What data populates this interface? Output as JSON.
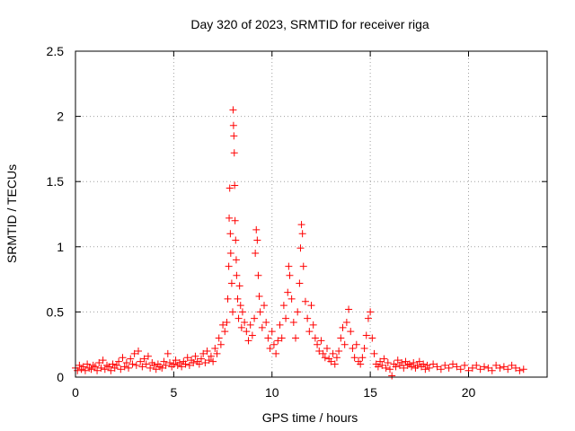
{
  "chart_data": {
    "type": "scatter",
    "title": "Day 320 of 2023, SRMTID for receiver riga",
    "xlabel": "GPS time / hours",
    "ylabel": "SRMTID / TECUs",
    "xlim": [
      0,
      24
    ],
    "ylim": [
      0,
      2.5
    ],
    "x_ticks": [
      0,
      5,
      10,
      15,
      20
    ],
    "x_tick_labels": [
      "0",
      "5",
      "10",
      "15",
      "20"
    ],
    "y_ticks": [
      0,
      0.5,
      1,
      1.5,
      2,
      2.5
    ],
    "y_tick_labels": [
      "0",
      "0.5",
      "1",
      "1.5",
      "2",
      "2.5"
    ],
    "grid": true,
    "marker": "+",
    "series": [
      {
        "name": "SRMTID",
        "color": "#ff0000",
        "points": [
          [
            0.0,
            0.07
          ],
          [
            0.1,
            0.05
          ],
          [
            0.2,
            0.09
          ],
          [
            0.3,
            0.06
          ],
          [
            0.4,
            0.08
          ],
          [
            0.5,
            0.05
          ],
          [
            0.6,
            0.1
          ],
          [
            0.7,
            0.07
          ],
          [
            0.8,
            0.06
          ],
          [
            0.9,
            0.09
          ],
          [
            1.0,
            0.08
          ],
          [
            1.1,
            0.05
          ],
          [
            1.2,
            0.11
          ],
          [
            1.3,
            0.07
          ],
          [
            1.4,
            0.13
          ],
          [
            1.5,
            0.06
          ],
          [
            1.6,
            0.09
          ],
          [
            1.7,
            0.08
          ],
          [
            1.8,
            0.05
          ],
          [
            1.9,
            0.1
          ],
          [
            2.0,
            0.07
          ],
          [
            2.1,
            0.09
          ],
          [
            2.2,
            0.12
          ],
          [
            2.3,
            0.06
          ],
          [
            2.4,
            0.15
          ],
          [
            2.5,
            0.08
          ],
          [
            2.6,
            0.11
          ],
          [
            2.7,
            0.07
          ],
          [
            2.8,
            0.14
          ],
          [
            2.9,
            0.1
          ],
          [
            3.0,
            0.18
          ],
          [
            3.1,
            0.09
          ],
          [
            3.2,
            0.2
          ],
          [
            3.3,
            0.12
          ],
          [
            3.4,
            0.08
          ],
          [
            3.5,
            0.14
          ],
          [
            3.6,
            0.1
          ],
          [
            3.7,
            0.16
          ],
          [
            3.8,
            0.07
          ],
          [
            3.9,
            0.11
          ],
          [
            4.0,
            0.09
          ],
          [
            4.1,
            0.06
          ],
          [
            4.2,
            0.1
          ],
          [
            4.3,
            0.08
          ],
          [
            4.4,
            0.07
          ],
          [
            4.5,
            0.12
          ],
          [
            4.6,
            0.09
          ],
          [
            4.7,
            0.18
          ],
          [
            4.8,
            0.11
          ],
          [
            4.9,
            0.08
          ],
          [
            5.0,
            0.1
          ],
          [
            5.1,
            0.13
          ],
          [
            5.2,
            0.09
          ],
          [
            5.3,
            0.11
          ],
          [
            5.4,
            0.08
          ],
          [
            5.5,
            0.12
          ],
          [
            5.6,
            0.1
          ],
          [
            5.7,
            0.15
          ],
          [
            5.8,
            0.09
          ],
          [
            5.9,
            0.13
          ],
          [
            6.0,
            0.11
          ],
          [
            6.1,
            0.16
          ],
          [
            6.2,
            0.12
          ],
          [
            6.3,
            0.1
          ],
          [
            6.4,
            0.14
          ],
          [
            6.5,
            0.18
          ],
          [
            6.6,
            0.11
          ],
          [
            6.7,
            0.2
          ],
          [
            6.8,
            0.13
          ],
          [
            6.9,
            0.16
          ],
          [
            7.0,
            0.12
          ],
          [
            7.1,
            0.22
          ],
          [
            7.2,
            0.18
          ],
          [
            7.3,
            0.3
          ],
          [
            7.4,
            0.25
          ],
          [
            7.5,
            0.4
          ],
          [
            7.6,
            0.35
          ],
          [
            7.7,
            0.42
          ],
          [
            7.75,
            0.6
          ],
          [
            7.8,
            0.85
          ],
          [
            7.82,
            1.22
          ],
          [
            7.85,
            1.45
          ],
          [
            7.88,
            1.1
          ],
          [
            7.9,
            0.95
          ],
          [
            7.95,
            0.72
          ],
          [
            8.0,
            0.5
          ],
          [
            8.02,
            2.05
          ],
          [
            8.04,
            1.93
          ],
          [
            8.06,
            1.85
          ],
          [
            8.08,
            1.72
          ],
          [
            8.1,
            1.47
          ],
          [
            8.12,
            1.2
          ],
          [
            8.15,
            1.05
          ],
          [
            8.18,
            0.9
          ],
          [
            8.2,
            0.78
          ],
          [
            8.25,
            0.6
          ],
          [
            8.3,
            0.45
          ],
          [
            8.35,
            0.7
          ],
          [
            8.4,
            0.55
          ],
          [
            8.45,
            0.38
          ],
          [
            8.5,
            0.5
          ],
          [
            8.6,
            0.42
          ],
          [
            8.7,
            0.35
          ],
          [
            8.8,
            0.28
          ],
          [
            8.9,
            0.4
          ],
          [
            9.0,
            0.32
          ],
          [
            9.1,
            0.45
          ],
          [
            9.15,
            0.95
          ],
          [
            9.2,
            1.13
          ],
          [
            9.25,
            1.05
          ],
          [
            9.3,
            0.78
          ],
          [
            9.35,
            0.62
          ],
          [
            9.4,
            0.5
          ],
          [
            9.5,
            0.38
          ],
          [
            9.6,
            0.55
          ],
          [
            9.7,
            0.42
          ],
          [
            9.8,
            0.3
          ],
          [
            9.9,
            0.22
          ],
          [
            10.0,
            0.35
          ],
          [
            10.1,
            0.25
          ],
          [
            10.2,
            0.18
          ],
          [
            10.3,
            0.28
          ],
          [
            10.4,
            0.4
          ],
          [
            10.5,
            0.3
          ],
          [
            10.6,
            0.55
          ],
          [
            10.7,
            0.45
          ],
          [
            10.8,
            0.65
          ],
          [
            10.85,
            0.85
          ],
          [
            10.9,
            0.78
          ],
          [
            11.0,
            0.6
          ],
          [
            11.1,
            0.42
          ],
          [
            11.2,
            0.3
          ],
          [
            11.3,
            0.5
          ],
          [
            11.4,
            0.72
          ],
          [
            11.45,
            0.99
          ],
          [
            11.5,
            1.17
          ],
          [
            11.55,
            1.1
          ],
          [
            11.6,
            0.85
          ],
          [
            11.7,
            0.58
          ],
          [
            11.8,
            0.45
          ],
          [
            11.9,
            0.35
          ],
          [
            12.0,
            0.55
          ],
          [
            12.1,
            0.4
          ],
          [
            12.2,
            0.3
          ],
          [
            12.3,
            0.25
          ],
          [
            12.4,
            0.2
          ],
          [
            12.5,
            0.28
          ],
          [
            12.6,
            0.18
          ],
          [
            12.7,
            0.15
          ],
          [
            12.8,
            0.22
          ],
          [
            12.9,
            0.14
          ],
          [
            13.0,
            0.12
          ],
          [
            13.1,
            0.18
          ],
          [
            13.2,
            0.1
          ],
          [
            13.3,
            0.15
          ],
          [
            13.4,
            0.2
          ],
          [
            13.5,
            0.3
          ],
          [
            13.6,
            0.38
          ],
          [
            13.7,
            0.25
          ],
          [
            13.8,
            0.42
          ],
          [
            13.9,
            0.52
          ],
          [
            14.0,
            0.35
          ],
          [
            14.1,
            0.22
          ],
          [
            14.2,
            0.15
          ],
          [
            14.3,
            0.25
          ],
          [
            14.4,
            0.12
          ],
          [
            14.5,
            0.1
          ],
          [
            14.6,
            0.15
          ],
          [
            14.7,
            0.22
          ],
          [
            14.8,
            0.32
          ],
          [
            14.9,
            0.45
          ],
          [
            15.0,
            0.5
          ],
          [
            15.1,
            0.3
          ],
          [
            15.2,
            0.18
          ],
          [
            15.3,
            0.1
          ],
          [
            15.4,
            0.08
          ],
          [
            15.5,
            0.12
          ],
          [
            15.6,
            0.09
          ],
          [
            15.7,
            0.14
          ],
          [
            15.8,
            0.07
          ],
          [
            15.9,
            0.11
          ],
          [
            16.0,
            0.06
          ],
          [
            16.1,
            0.01
          ],
          [
            16.2,
            0.1
          ],
          [
            16.3,
            0.08
          ],
          [
            16.4,
            0.13
          ],
          [
            16.5,
            0.09
          ],
          [
            16.6,
            0.11
          ],
          [
            16.7,
            0.07
          ],
          [
            16.8,
            0.12
          ],
          [
            16.9,
            0.09
          ],
          [
            17.0,
            0.1
          ],
          [
            17.1,
            0.08
          ],
          [
            17.2,
            0.11
          ],
          [
            17.3,
            0.07
          ],
          [
            17.4,
            0.09
          ],
          [
            17.5,
            0.12
          ],
          [
            17.6,
            0.08
          ],
          [
            17.7,
            0.1
          ],
          [
            17.8,
            0.06
          ],
          [
            17.9,
            0.09
          ],
          [
            18.0,
            0.07
          ],
          [
            18.2,
            0.1
          ],
          [
            18.4,
            0.08
          ],
          [
            18.6,
            0.06
          ],
          [
            18.8,
            0.09
          ],
          [
            19.0,
            0.07
          ],
          [
            19.2,
            0.1
          ],
          [
            19.4,
            0.08
          ],
          [
            19.6,
            0.06
          ],
          [
            19.8,
            0.09
          ],
          [
            20.0,
            0.05
          ],
          [
            20.2,
            0.07
          ],
          [
            20.4,
            0.09
          ],
          [
            20.6,
            0.06
          ],
          [
            20.8,
            0.08
          ],
          [
            21.0,
            0.07
          ],
          [
            21.2,
            0.05
          ],
          [
            21.4,
            0.09
          ],
          [
            21.6,
            0.07
          ],
          [
            21.8,
            0.08
          ],
          [
            22.0,
            0.06
          ],
          [
            22.2,
            0.09
          ],
          [
            22.4,
            0.07
          ],
          [
            22.6,
            0.05
          ],
          [
            22.8,
            0.06
          ]
        ]
      }
    ]
  }
}
